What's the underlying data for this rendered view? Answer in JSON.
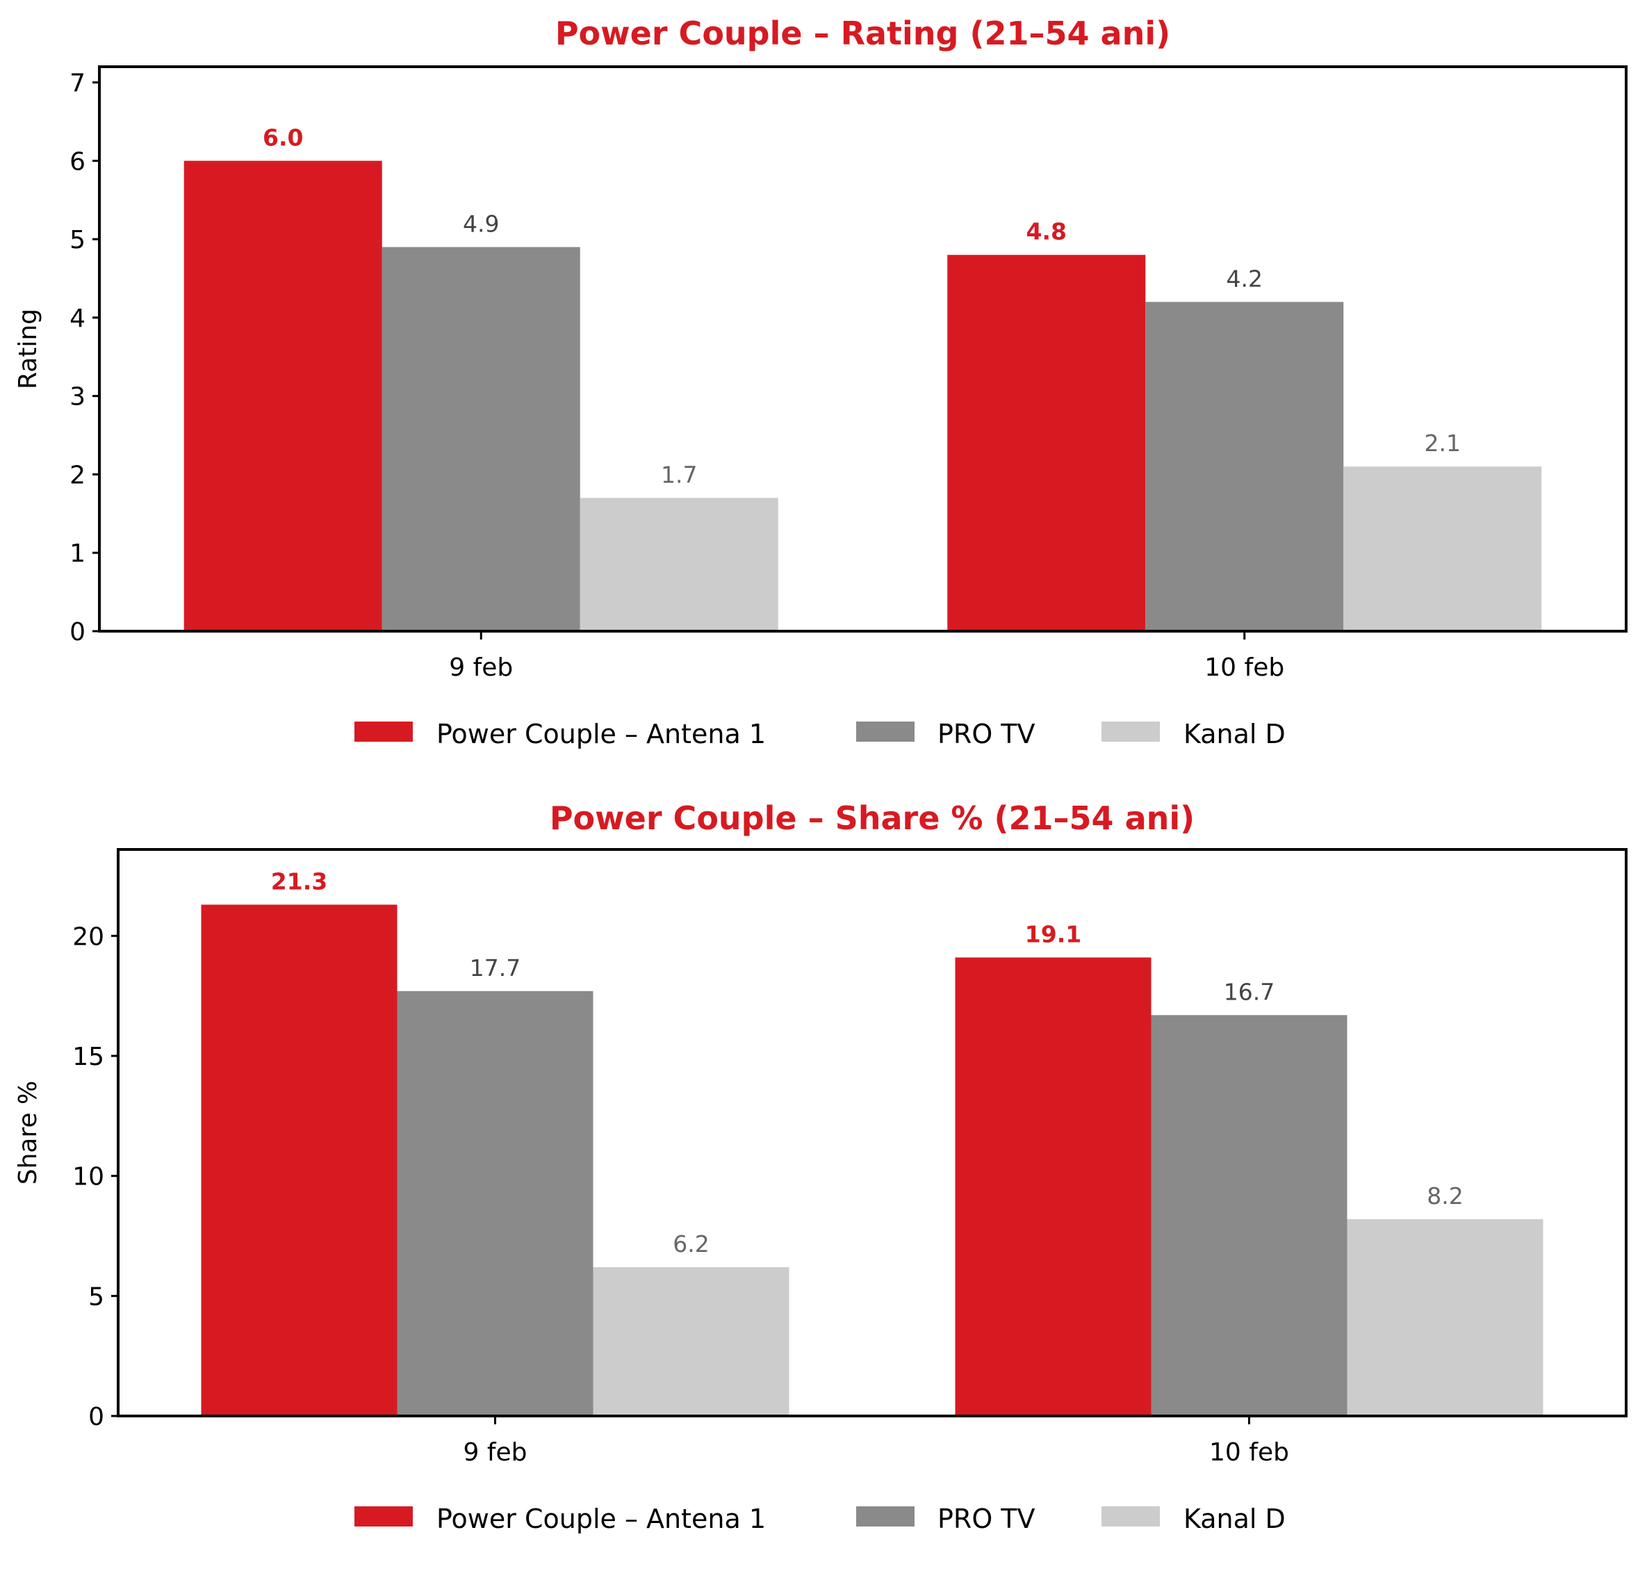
{
  "colors": {
    "accent": "#d71a21",
    "series": [
      "#d71a21",
      "#8a8a8a",
      "#cccccc"
    ],
    "label_colors": [
      "#d71a21",
      "#444444",
      "#666666"
    ]
  },
  "chart_data": [
    {
      "type": "bar",
      "title": "Power Couple – Rating (21–54 ani)",
      "xlabel": "",
      "ylabel": "Rating",
      "categories": [
        "9 feb",
        "10 feb"
      ],
      "ylim": [
        0,
        7.2
      ],
      "yticks": [
        0,
        1,
        2,
        3,
        4,
        5,
        6,
        7
      ],
      "ytick_labels": [
        "0",
        "1",
        "2",
        "3",
        "4",
        "5",
        "6",
        "7"
      ],
      "series": [
        {
          "name": "Power Couple – Antena 1",
          "values": [
            6.0,
            4.8
          ],
          "labels": [
            "6.0",
            "4.8"
          ],
          "bold": true
        },
        {
          "name": "PRO TV",
          "values": [
            4.9,
            4.2
          ],
          "labels": [
            "4.9",
            "4.2"
          ],
          "bold": false
        },
        {
          "name": "Kanal D",
          "values": [
            1.7,
            2.1
          ],
          "labels": [
            "1.7",
            "2.1"
          ],
          "bold": false
        }
      ],
      "legend": "bottom-center",
      "grid": false
    },
    {
      "type": "bar",
      "title": "Power Couple – Share % (21–54 ani)",
      "xlabel": "",
      "ylabel": "Share %",
      "categories": [
        "9 feb",
        "10 feb"
      ],
      "ylim": [
        0,
        23.6
      ],
      "yticks": [
        0,
        5,
        10,
        15,
        20
      ],
      "ytick_labels": [
        "0",
        "5",
        "10",
        "15",
        "20"
      ],
      "series": [
        {
          "name": "Power Couple – Antena 1",
          "values": [
            21.3,
            19.1
          ],
          "labels": [
            "21.3",
            "19.1"
          ],
          "bold": true
        },
        {
          "name": "PRO TV",
          "values": [
            17.7,
            16.7
          ],
          "labels": [
            "17.7",
            "16.7"
          ],
          "bold": false
        },
        {
          "name": "Kanal D",
          "values": [
            6.2,
            8.2
          ],
          "labels": [
            "6.2",
            "8.2"
          ],
          "bold": false
        }
      ],
      "legend": "bottom-center",
      "grid": false
    }
  ]
}
